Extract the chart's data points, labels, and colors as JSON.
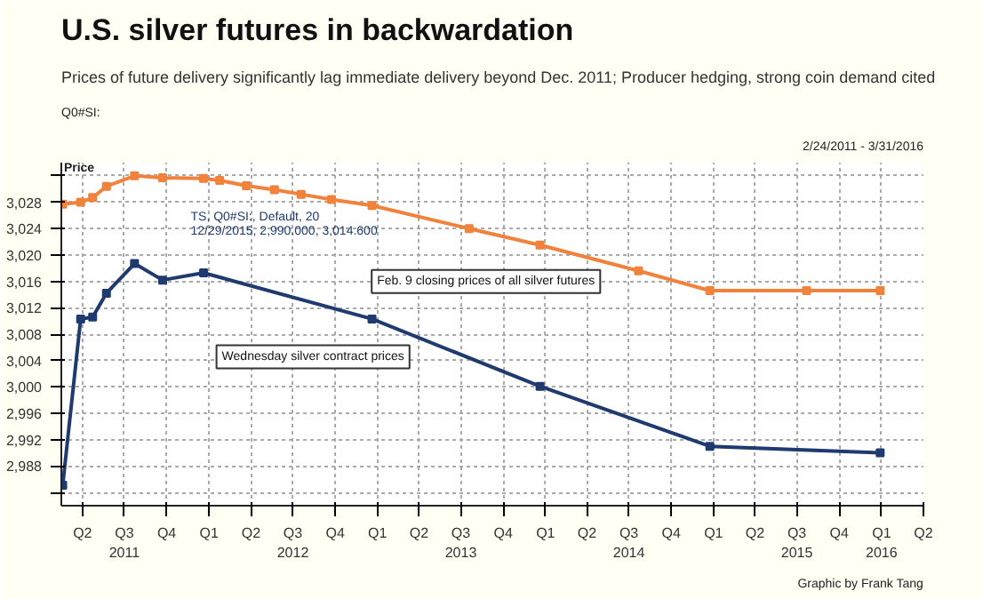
{
  "chart_data": {
    "type": "line",
    "title": "U.S. silver futures in backwardation",
    "subtitle": "Prices of future delivery significantly lag immediate delivery beyond Dec. 2011; Producer hedging, strong coin demand cited",
    "ylabel": "Price",
    "annotations": [
      "Q0#SI:",
      "TS, Q0#SI:, Default, 20",
      "12/29/2015, 2,990.000, 3,014.600",
      "2/24/2011 - 3/31/2016",
      "Graphic by Frank Tang"
    ],
    "marker": "square",
    "line_style": "solid",
    "grid": true,
    "xlim": [
      "2011-02-14",
      "2016-04-01"
    ],
    "ylim": [
      2982,
      3034
    ],
    "xticks": [
      {
        "value": "2011-04-01",
        "label": "Q2"
      },
      {
        "value": "2011-07-01",
        "label": "Q3\n2011"
      },
      {
        "value": "2011-10-01",
        "label": "Q4"
      },
      {
        "value": "2012-01-01",
        "label": "Q1"
      },
      {
        "value": "2012-04-01",
        "label": "Q2"
      },
      {
        "value": "2012-07-01",
        "label": "Q3\n2012"
      },
      {
        "value": "2012-10-01",
        "label": "Q4"
      },
      {
        "value": "2013-01-01",
        "label": "Q1"
      },
      {
        "value": "2013-04-01",
        "label": "Q2"
      },
      {
        "value": "2013-07-01",
        "label": "Q3\n2013"
      },
      {
        "value": "2013-10-01",
        "label": "Q4"
      },
      {
        "value": "2014-01-01",
        "label": "Q1"
      },
      {
        "value": "2014-04-01",
        "label": "Q2"
      },
      {
        "value": "2014-07-01",
        "label": "Q3\n2014"
      },
      {
        "value": "2014-10-01",
        "label": "Q4"
      },
      {
        "value": "2015-01-01",
        "label": "Q1"
      },
      {
        "value": "2015-04-01",
        "label": "Q2"
      },
      {
        "value": "2015-07-01",
        "label": "Q3\n2015"
      },
      {
        "value": "2015-10-01",
        "label": "Q4"
      },
      {
        "value": "2016-01-01",
        "label": "Q1\n2016"
      },
      {
        "value": "2016-04-01",
        "label": "Q2"
      }
    ],
    "yticks": [
      {
        "value": 2984,
        "label": null
      },
      {
        "value": 2988,
        "label": "2,988"
      },
      {
        "value": 2992,
        "label": "2,992"
      },
      {
        "value": 2996,
        "label": "2,996"
      },
      {
        "value": 3000,
        "label": "3,000"
      },
      {
        "value": 3004,
        "label": "3,004"
      },
      {
        "value": 3008,
        "label": "3,008"
      },
      {
        "value": 3012,
        "label": "3,012"
      },
      {
        "value": 3016,
        "label": "3,016"
      },
      {
        "value": 3020,
        "label": "3,020"
      },
      {
        "value": 3024,
        "label": "3,024"
      },
      {
        "value": 3028,
        "label": "3,028"
      },
      {
        "value": 3032,
        "label": null
      }
    ],
    "series": [
      {
        "name": "Feb. 9 closing prices of all silver futures",
        "color": "#f0823c",
        "x": [
          "2011-02-17",
          "2011-03-28",
          "2011-04-23",
          "2011-05-23",
          "2011-07-23",
          "2011-09-22",
          "2011-12-20",
          "2012-01-24",
          "2012-03-22",
          "2012-05-22",
          "2012-07-19",
          "2012-09-23",
          "2012-12-20",
          "2013-07-19",
          "2013-12-20",
          "2014-07-22",
          "2014-12-24",
          "2015-07-22",
          "2015-12-29"
        ],
        "values": [
          3027.7,
          3028,
          3028.7,
          3030.4,
          3032,
          3031.7,
          3031.6,
          3031.3,
          3030.5,
          3029.9,
          3029.2,
          3028.4,
          3027.5,
          3024,
          3021.5,
          3017.6,
          3014.6,
          3014.6,
          3014.6
        ]
      },
      {
        "name": "Wednesday silver contract prices",
        "color": "#1f3a6e",
        "x": [
          "2011-02-17",
          "2011-03-28",
          "2011-04-23",
          "2011-05-23",
          "2011-07-23",
          "2011-09-22",
          "2011-12-20",
          "2012-12-20",
          "2013-12-20",
          "2014-12-24",
          "2015-12-29"
        ],
        "values": [
          2985.1,
          3010.3,
          3010.6,
          3014.2,
          3018.7,
          3016.2,
          3017.3,
          3010.3,
          3000.1,
          2991,
          2990
        ]
      }
    ]
  }
}
